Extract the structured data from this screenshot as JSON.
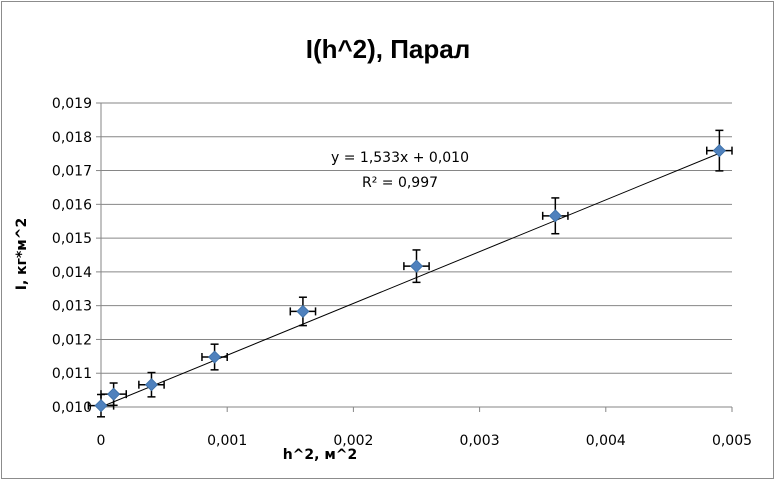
{
  "chart_data": {
    "type": "scatter",
    "title": "I(h^2), Парал",
    "xlabel": "h^2, м^2",
    "ylabel": "I, кг*м^2",
    "xlim": [
      0,
      0.005
    ],
    "ylim": [
      0.01,
      0.019
    ],
    "x_ticks": [
      0,
      0.001,
      0.002,
      0.003,
      0.004,
      0.005
    ],
    "x_tick_labels": [
      "0",
      "0,001",
      "0,002",
      "0,003",
      "0,004",
      "0,005"
    ],
    "y_ticks": [
      0.01,
      0.011,
      0.012,
      0.013,
      0.014,
      0.015,
      0.016,
      0.017,
      0.018,
      0.019
    ],
    "y_tick_labels": [
      "0,010",
      "0,011",
      "0,012",
      "0,013",
      "0,014",
      "0,015",
      "0,016",
      "0,017",
      "0,018",
      "0,019"
    ],
    "grid": "horizontal",
    "series": [
      {
        "x": [
          0.0,
          0.0001,
          0.0004,
          0.0009,
          0.0016,
          0.0025,
          0.0036,
          0.0049
        ],
        "y": [
          0.01004,
          0.01038,
          0.01066,
          0.01148,
          0.01283,
          0.01417,
          0.01566,
          0.01759
        ],
        "x_error": 0.0001,
        "y_error": [
          0.00033,
          0.00033,
          0.00036,
          0.00038,
          0.00042,
          0.00048,
          0.00053,
          0.0006
        ],
        "color": "#4f81bd",
        "marker": "diamond"
      }
    ],
    "trendline": {
      "type": "linear",
      "slope": 1.533,
      "intercept": 0.01,
      "equation": "y = 1,533x + 0,010",
      "r_squared": "R² = 0,997",
      "color": "#000000"
    },
    "colors": {
      "marker": "#4f81bd",
      "grid": "#868686",
      "axis": "#868686",
      "trendline": "#000000",
      "error_bar": "#000000"
    }
  }
}
